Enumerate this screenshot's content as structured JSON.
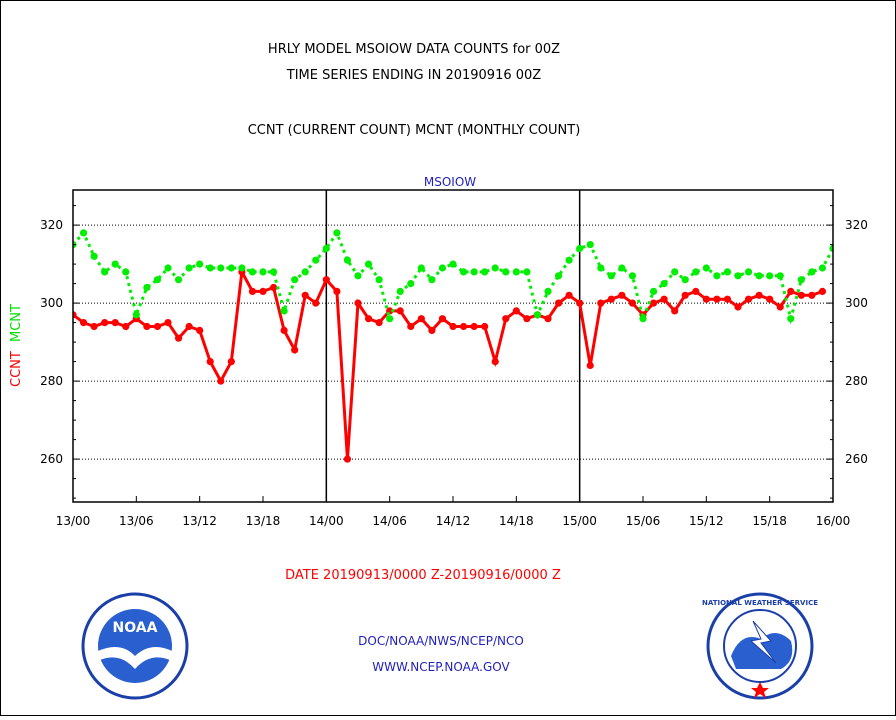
{
  "header": {
    "title_line1": "HRLY MODEL MSOIOW DATA COUNTS for 00Z",
    "title_line2": "TIME SERIES ENDING IN 20190916 00Z",
    "subtitle": "CCNT (CURRENT COUNT) MCNT (MONTHLY COUNT)"
  },
  "footer": {
    "date_range": "DATE 20190913/0000 Z-20190916/0000 Z",
    "org_line": "DOC/NOAA/NWS/NCEP/NCO",
    "url_line": "WWW.NCEP.NOAA.GOV",
    "noaa_logo_text": "NOAA",
    "nws_logo_text": "NATIONAL WEATHER SERVICE"
  },
  "chart_data": {
    "type": "line",
    "panel_label": "MSOIOW",
    "ylabel_left": "CCNT",
    "ylabel_right": "MCNT",
    "x_ticks": [
      "13/00",
      "13/06",
      "13/12",
      "13/18",
      "14/00",
      "14/06",
      "14/12",
      "14/18",
      "15/00",
      "15/06",
      "15/12",
      "15/18",
      "16/00"
    ],
    "x_range_hours": [
      0,
      72
    ],
    "y_ticks": [
      "260",
      "280",
      "300",
      "320"
    ],
    "y_range": [
      249,
      329
    ],
    "grid": "horizontal dotted at 260, 280, 300, 320; vertical solid at 14/00 and 15/00",
    "colors": {
      "ccnt": "#ff0000",
      "mcnt": "#00ee00",
      "frame": "#000000"
    },
    "series": [
      {
        "name": "CCNT",
        "style": "solid",
        "values": [
          297,
          295,
          294,
          295,
          295,
          294,
          296,
          294,
          294,
          295,
          291,
          294,
          293,
          285,
          280,
          285,
          308,
          303,
          303,
          304,
          293,
          288,
          302,
          300,
          306,
          303,
          260,
          300,
          296,
          295,
          298,
          298,
          294,
          296,
          293,
          296,
          294,
          294,
          294,
          294,
          285,
          296,
          298,
          296,
          297,
          296,
          300,
          302,
          300,
          284,
          300,
          301,
          302,
          300,
          297,
          300,
          301,
          298,
          302,
          303,
          301,
          301,
          301,
          299,
          301,
          302,
          301,
          299,
          303,
          302,
          302,
          303
        ]
      },
      {
        "name": "MCNT",
        "style": "dotted",
        "values": [
          315,
          318,
          312,
          308,
          310,
          308,
          297,
          304,
          306,
          309,
          306,
          309,
          310,
          309,
          309,
          309,
          309,
          308,
          308,
          308,
          298,
          306,
          308,
          311,
          314,
          318,
          311,
          307,
          310,
          306,
          296,
          303,
          305,
          309,
          306,
          309,
          310,
          308,
          308,
          308,
          309,
          308,
          308,
          308,
          297,
          303,
          307,
          311,
          314,
          315,
          309,
          307,
          309,
          307,
          296,
          303,
          305,
          308,
          306,
          308,
          309,
          307,
          308,
          307,
          308,
          307,
          307,
          307,
          296,
          306,
          308,
          309,
          314
        ]
      }
    ]
  }
}
